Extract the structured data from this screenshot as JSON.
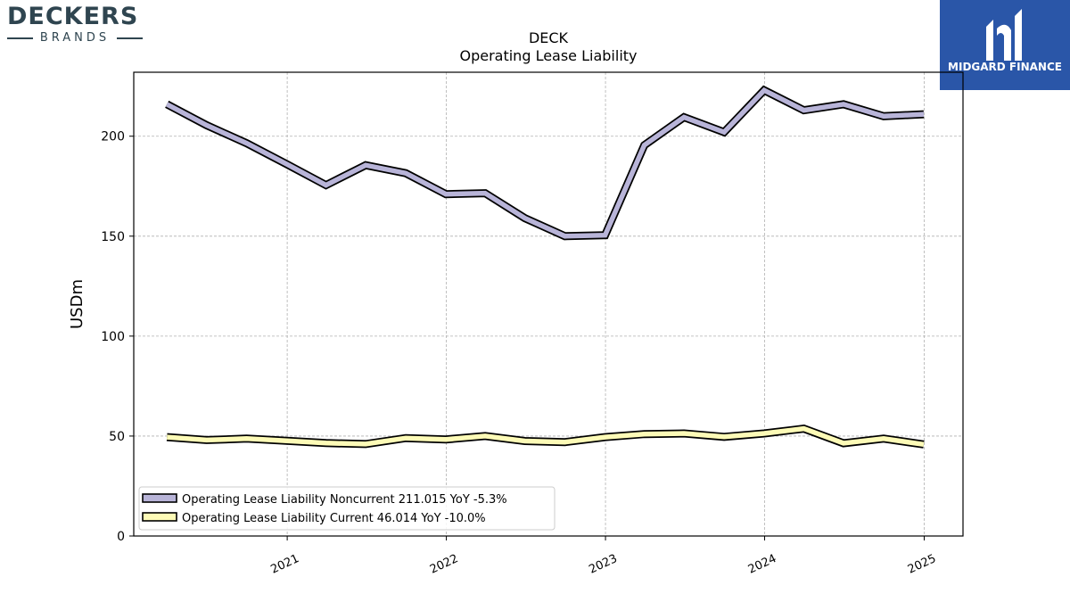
{
  "branding": {
    "company_name": "DECKERS",
    "company_sub": "BRANDS",
    "badge_text": "MIDGARD FINANCE",
    "badge_color": "#2a56a8"
  },
  "chart_data": {
    "type": "line",
    "title": "DECK",
    "subtitle": "Operating Lease Liability",
    "xlabel": "",
    "ylabel": "USDm",
    "ylim": [
      0,
      232
    ],
    "xlim": [
      "2020-01-15",
      "2025-03-31"
    ],
    "yticks": [
      0,
      50,
      100,
      150,
      200
    ],
    "xticks": [
      {
        "date": "2021-01-01",
        "label": "2021"
      },
      {
        "date": "2022-01-01",
        "label": "2022"
      },
      {
        "date": "2023-01-01",
        "label": "2023"
      },
      {
        "date": "2024-01-01",
        "label": "2024"
      },
      {
        "date": "2025-01-01",
        "label": "2025"
      }
    ],
    "grid": true,
    "legend_position": "lower-left",
    "x": [
      "2020-03-31",
      "2020-06-30",
      "2020-09-30",
      "2020-12-31",
      "2021-03-31",
      "2021-06-30",
      "2021-09-30",
      "2021-12-31",
      "2022-03-31",
      "2022-06-30",
      "2022-09-30",
      "2022-12-31",
      "2023-03-31",
      "2023-06-30",
      "2023-09-30",
      "2023-12-31",
      "2024-03-31",
      "2024-06-30",
      "2024-09-30",
      "2024-12-31"
    ],
    "series": [
      {
        "name": "Operating Lease Liability Noncurrent",
        "legend_label": "Operating Lease Liability Noncurrent  211.015 YoY -5.3%",
        "color": "#b8b4d8",
        "values": [
          216,
          205.5,
          196.5,
          186,
          175.5,
          185.5,
          181.5,
          171,
          171.5,
          159,
          150,
          150.5,
          195.5,
          209.5,
          202,
          223,
          213,
          216,
          210,
          211
        ]
      },
      {
        "name": "Operating Lease Liability Current",
        "legend_label": "Operating Lease Liability Current  46.014 YoY -10.0%",
        "color": "#fdfbb7",
        "values": [
          49.5,
          48,
          48.7,
          47.6,
          46.5,
          46,
          49,
          48.3,
          50,
          47.5,
          47,
          49.5,
          51,
          51.3,
          49.6,
          51.3,
          53.7,
          46.4,
          48.7,
          45.8
        ]
      }
    ]
  }
}
